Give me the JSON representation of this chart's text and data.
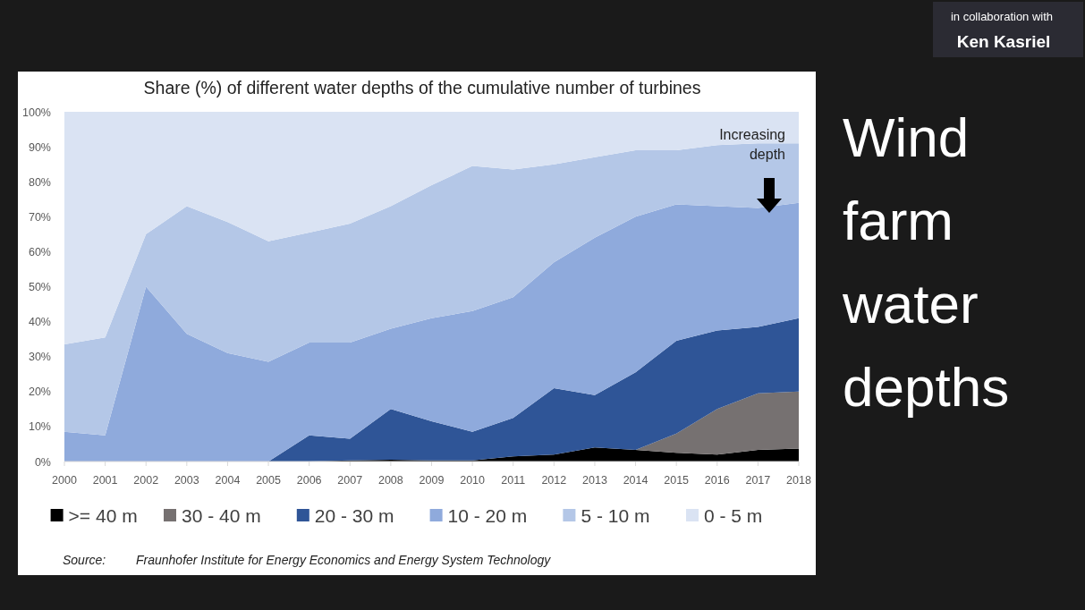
{
  "chart_data": {
    "type": "area",
    "stacked": true,
    "title": "Share (%) of different water depths of the cumulative number of turbines",
    "x": [
      2000,
      2001,
      2002,
      2003,
      2004,
      2005,
      2006,
      2007,
      2008,
      2009,
      2010,
      2011,
      2012,
      2013,
      2014,
      2015,
      2016,
      2017,
      2018
    ],
    "xlim": [
      2000,
      2018
    ],
    "xticks": [
      2000,
      2001,
      2002,
      2003,
      2004,
      2005,
      2006,
      2007,
      2008,
      2009,
      2010,
      2011,
      2012,
      2013,
      2014,
      2015,
      2016,
      2017,
      2018
    ],
    "ylim": [
      0,
      100
    ],
    "yticks": [
      {
        "value": 0,
        "label": "0%"
      },
      {
        "value": 10,
        "label": "10%"
      },
      {
        "value": 20,
        "label": "20%"
      },
      {
        "value": 30,
        "label": "30%"
      },
      {
        "value": 40,
        "label": "40%"
      },
      {
        "value": 50,
        "label": "50%"
      },
      {
        "value": 60,
        "label": "60%"
      },
      {
        "value": 70,
        "label": "70%"
      },
      {
        "value": 80,
        "label": "80%"
      },
      {
        "value": 90,
        "label": "90%"
      },
      {
        "value": 100,
        "label": "100%"
      }
    ],
    "series": [
      {
        "name": ">= 40 m",
        "color": "#000000",
        "values": [
          0,
          0,
          0,
          0,
          0,
          0,
          0,
          0.3,
          0.5,
          0.3,
          0.3,
          1.5,
          2,
          4,
          3.3,
          2.5,
          2,
          3.3,
          3.7
        ]
      },
      {
        "name": "30 - 40 m",
        "color": "#767171",
        "values": [
          0,
          0,
          0,
          0,
          0,
          0,
          0,
          0,
          0,
          0,
          0,
          0,
          0,
          0,
          0,
          5.5,
          13,
          16.2,
          16.3
        ]
      },
      {
        "name": "20 - 30 m",
        "color": "#2f5597",
        "values": [
          0,
          0,
          0,
          0,
          0,
          0,
          7.5,
          6.2,
          14.5,
          11.2,
          8.2,
          11,
          19,
          15,
          22.2,
          26.5,
          22.5,
          19,
          21
        ]
      },
      {
        "name": "10 - 20 m",
        "color": "#8faadc",
        "values": [
          8.5,
          7.5,
          50,
          36.5,
          31,
          28.5,
          26.5,
          27.5,
          23,
          29.5,
          34.5,
          34.5,
          36,
          45,
          44.5,
          39,
          35.5,
          34,
          33
        ]
      },
      {
        "name": "5 - 10 m",
        "color": "#b4c7e7",
        "values": [
          25,
          28,
          15,
          36.5,
          37.5,
          34.5,
          31.5,
          34,
          35,
          38,
          41.5,
          36.5,
          28,
          23,
          19,
          15.5,
          17.5,
          18.5,
          17
        ]
      },
      {
        "name": "0 - 5 m",
        "color": "#dae3f3",
        "values": [
          66.5,
          64.5,
          35,
          27,
          31.5,
          37,
          34.5,
          32,
          27,
          21,
          15.5,
          16.5,
          15,
          13,
          11,
          11,
          9.5,
          9,
          9
        ]
      }
    ],
    "legend": "bottom",
    "grid": false,
    "annotations": [
      "Increasing depth",
      "Source:",
      "Fraunhofer Institute for Energy Economics and Energy System Technology",
      "Wind farm water depths",
      "in collaboration with",
      "Ken Kasriel"
    ]
  }
}
